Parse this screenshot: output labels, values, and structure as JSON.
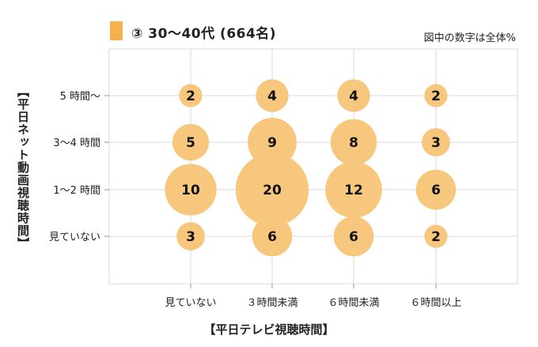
{
  "legend": {
    "label": "③ 30〜40代 (664名)",
    "color": "#f5b14a"
  },
  "note": "図中の数字は全体%",
  "chart_data": {
    "type": "bubble",
    "xlabel": "【平日テレビ視聴時間】",
    "ylabel": "【平日ネット動画視聴時間】",
    "x_categories": [
      "見ていない",
      "３時間未満",
      "６時間未満",
      "６時間以上"
    ],
    "y_categories": [
      "見ていない",
      "1〜2 時間",
      "3〜4 時間",
      "5 時間〜"
    ],
    "bubble_color": "#f7c77e",
    "points": [
      {
        "x": "見ていない",
        "y": "5 時間〜",
        "value": 2
      },
      {
        "x": "３時間未満",
        "y": "5 時間〜",
        "value": 4
      },
      {
        "x": "６時間未満",
        "y": "5 時間〜",
        "value": 4
      },
      {
        "x": "６時間以上",
        "y": "5 時間〜",
        "value": 2
      },
      {
        "x": "見ていない",
        "y": "3〜4 時間",
        "value": 5
      },
      {
        "x": "３時間未満",
        "y": "3〜4 時間",
        "value": 9
      },
      {
        "x": "６時間未満",
        "y": "3〜4 時間",
        "value": 8
      },
      {
        "x": "６時間以上",
        "y": "3〜4 時間",
        "value": 3
      },
      {
        "x": "見ていない",
        "y": "1〜2 時間",
        "value": 10
      },
      {
        "x": "３時間未満",
        "y": "1〜2 時間",
        "value": 20
      },
      {
        "x": "６時間未満",
        "y": "1〜2 時間",
        "value": 12
      },
      {
        "x": "６時間以上",
        "y": "1〜2 時間",
        "value": 6
      },
      {
        "x": "見ていない",
        "y": "見ていない",
        "value": 3
      },
      {
        "x": "３時間未満",
        "y": "見ていない",
        "value": 6
      },
      {
        "x": "６時間未満",
        "y": "見ていない",
        "value": 6
      },
      {
        "x": "６時間以上",
        "y": "見ていない",
        "value": 2
      }
    ],
    "grid": true
  }
}
